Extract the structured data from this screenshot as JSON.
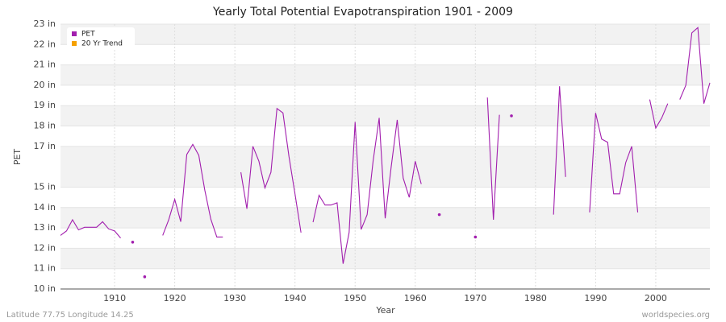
{
  "chart_data": {
    "type": "line",
    "title": "Yearly Total Potential Evapotranspiration 1901 - 2009",
    "xlabel": "Year",
    "ylabel": "PET",
    "footer_left": "Latitude 77.75 Longitude 14.25",
    "footer_right": "worldspecies.org",
    "x": [
      1901,
      1902,
      1903,
      1904,
      1905,
      1906,
      1907,
      1908,
      1909,
      1910,
      1911,
      1912,
      1913,
      1914,
      1915,
      1916,
      1917,
      1918,
      1919,
      1920,
      1921,
      1922,
      1923,
      1924,
      1925,
      1926,
      1927,
      1928,
      1929,
      1930,
      1931,
      1932,
      1933,
      1934,
      1935,
      1936,
      1937,
      1938,
      1939,
      1940,
      1941,
      1942,
      1943,
      1944,
      1945,
      1946,
      1947,
      1948,
      1949,
      1950,
      1951,
      1952,
      1953,
      1954,
      1955,
      1956,
      1957,
      1958,
      1959,
      1960,
      1961,
      1962,
      1963,
      1964,
      1965,
      1966,
      1967,
      1968,
      1969,
      1970,
      1971,
      1972,
      1973,
      1974,
      1975,
      1976,
      1977,
      1978,
      1979,
      1980,
      1981,
      1982,
      1983,
      1984,
      1985,
      1986,
      1987,
      1988,
      1989,
      1990,
      1991,
      1992,
      1993,
      1994,
      1995,
      1996,
      1997,
      1998,
      1999,
      2000,
      2001,
      2002,
      2003,
      2004,
      2005,
      2006,
      2007,
      2008,
      2009
    ],
    "series": [
      {
        "name": "PET",
        "color": "#a21fae",
        "values": [
          12.63,
          12.85,
          13.4,
          12.9,
          13.03,
          13.03,
          13.03,
          13.3,
          12.95,
          12.85,
          12.5,
          null,
          12.3,
          null,
          10.6,
          null,
          null,
          12.63,
          13.4,
          14.4,
          13.3,
          16.6,
          17.1,
          16.56,
          14.85,
          13.43,
          12.55,
          12.55,
          null,
          null,
          15.73,
          13.94,
          17.0,
          16.27,
          14.96,
          15.73,
          18.86,
          18.64,
          16.5,
          14.67,
          12.77,
          null,
          13.28,
          14.6,
          14.12,
          14.12,
          14.23,
          11.24,
          12.77,
          18.2,
          12.92,
          13.65,
          16.3,
          18.4,
          13.47,
          16.0,
          18.3,
          15.44,
          14.5,
          16.27,
          15.15,
          null,
          null,
          13.65,
          null,
          null,
          null,
          null,
          null,
          12.55,
          null,
          19.4,
          13.4,
          18.55,
          null,
          18.5,
          null,
          null,
          null,
          null,
          null,
          null,
          13.65,
          19.95,
          15.5,
          null,
          null,
          null,
          13.76,
          18.64,
          17.36,
          17.2,
          14.67,
          14.67,
          16.2,
          17.0,
          13.76,
          null,
          19.3,
          17.9,
          18.4,
          19.1,
          null,
          19.3,
          20.0,
          22.57,
          22.83,
          19.1,
          20.12
        ]
      },
      {
        "name": "20 Yr Trend",
        "color": "#f5a000",
        "values": [
          null,
          null,
          null,
          null,
          null,
          null,
          null,
          null,
          null,
          null,
          null,
          null,
          null,
          null,
          null,
          null,
          null,
          null,
          null,
          null,
          null,
          null,
          null,
          null,
          null,
          null,
          null,
          null,
          null,
          null,
          null,
          null,
          null,
          null,
          null,
          null,
          null,
          null,
          null,
          null,
          null,
          null,
          null,
          null,
          null,
          null,
          null,
          null,
          null,
          null,
          null,
          null,
          null,
          null,
          null,
          null,
          null,
          null,
          null,
          null,
          null,
          null,
          null,
          null,
          null,
          null,
          null,
          null,
          null,
          null,
          null,
          null,
          null,
          null,
          null,
          null,
          null,
          null,
          null,
          null,
          null,
          null,
          null,
          null,
          null,
          null,
          null,
          null,
          null,
          null,
          null,
          null,
          null,
          null,
          null,
          null,
          null,
          null,
          null,
          null,
          null,
          null,
          null,
          null,
          null,
          null,
          null,
          null,
          null
        ]
      }
    ],
    "xlim": [
      1901,
      2009
    ],
    "xticks": [
      1910,
      1920,
      1930,
      1940,
      1950,
      1960,
      1970,
      1980,
      1990,
      2000
    ],
    "ylim": [
      10,
      23
    ],
    "yticks": [
      {
        "value": 10,
        "label": "10 in"
      },
      {
        "value": 11,
        "label": "11 in"
      },
      {
        "value": 12,
        "label": "12 in"
      },
      {
        "value": 13,
        "label": "13 in"
      },
      {
        "value": 14,
        "label": "14 in"
      },
      {
        "value": 15,
        "label": "15 in"
      },
      {
        "value": 17,
        "label": "17 in"
      },
      {
        "value": 18,
        "label": "18 in"
      },
      {
        "value": 19,
        "label": "19 in"
      },
      {
        "value": 20,
        "label": "20 in"
      },
      {
        "value": 21,
        "label": "21 in"
      },
      {
        "value": 22,
        "label": "22 in"
      },
      {
        "value": 23,
        "label": "23 in"
      }
    ],
    "grid": true,
    "legend": "upper left"
  }
}
